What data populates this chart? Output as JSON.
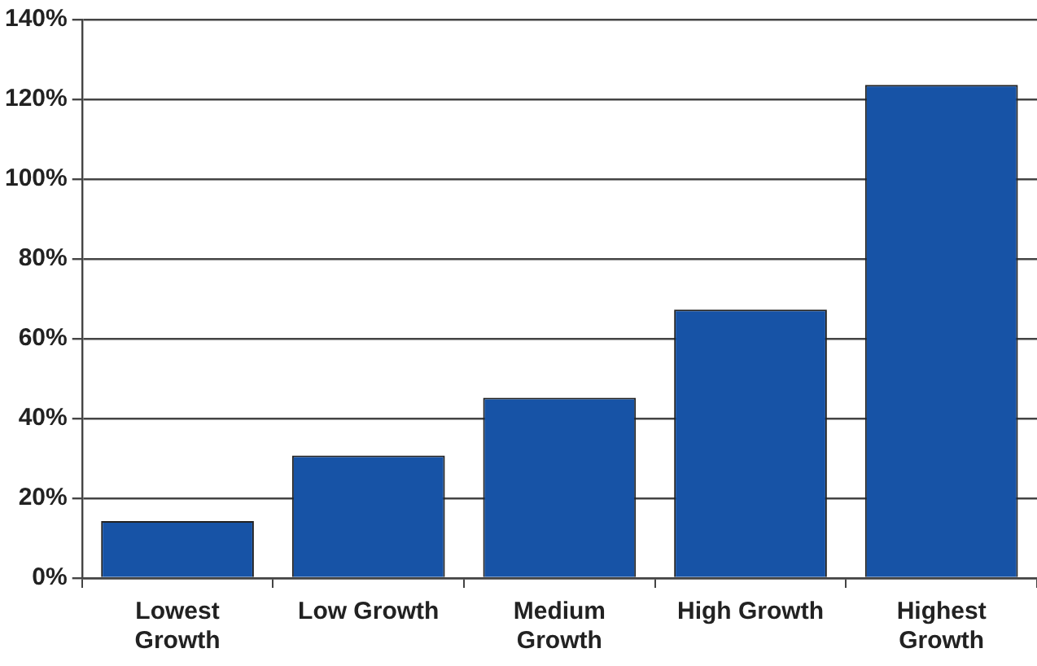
{
  "chart_data": {
    "type": "bar",
    "categories": [
      "Lowest Growth",
      "Low Growth",
      "Medium Growth",
      "High Growth",
      "Highest Growth"
    ],
    "values": [
      14.3,
      30.7,
      45.2,
      67.3,
      123.6
    ],
    "color": "#1753a6",
    "ylim": [
      0,
      140
    ],
    "yticks": [
      {
        "value": 0,
        "label": "0%"
      },
      {
        "value": 20,
        "label": "20%"
      },
      {
        "value": 40,
        "label": "40%"
      },
      {
        "value": 60,
        "label": "60%"
      },
      {
        "value": 80,
        "label": "80%"
      },
      {
        "value": 100,
        "label": "100%"
      },
      {
        "value": 120,
        "label": "120%"
      },
      {
        "value": 140,
        "label": "140%"
      }
    ],
    "grid": "y"
  }
}
